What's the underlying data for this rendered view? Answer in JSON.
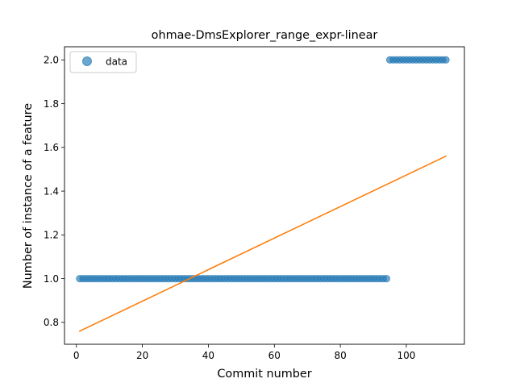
{
  "chart_data": {
    "type": "scatter",
    "title": "ohmae-DmsExplorer_range_expr-linear",
    "xlabel": "Commit number",
    "ylabel": "Number of instance of a feature",
    "xlim": [
      -3.6,
      117.6
    ],
    "ylim": [
      0.7,
      2.06
    ],
    "xticks": [
      0,
      20,
      40,
      60,
      80,
      100
    ],
    "yticks": [
      0.8,
      1.0,
      1.2,
      1.4,
      1.6,
      1.8,
      2.0
    ],
    "xtick_labels": [
      "0",
      "20",
      "40",
      "60",
      "80",
      "100"
    ],
    "ytick_labels": [
      "0.8",
      "1.0",
      "1.2",
      "1.4",
      "1.6",
      "1.8",
      "2.0"
    ],
    "grid": false,
    "legend": {
      "position": "top-left",
      "entries": [
        "data"
      ]
    },
    "series": [
      {
        "name": "data",
        "kind": "scatter",
        "color": "#1f77b4",
        "segments": [
          {
            "x_from": 1,
            "x_to": 94,
            "y": 1.0
          },
          {
            "x_from": 95,
            "x_to": 112,
            "y": 2.0
          }
        ]
      },
      {
        "kind": "line",
        "color": "#ff7f0e",
        "x": [
          1,
          112
        ],
        "y": [
          0.76,
          1.56
        ]
      }
    ]
  }
}
